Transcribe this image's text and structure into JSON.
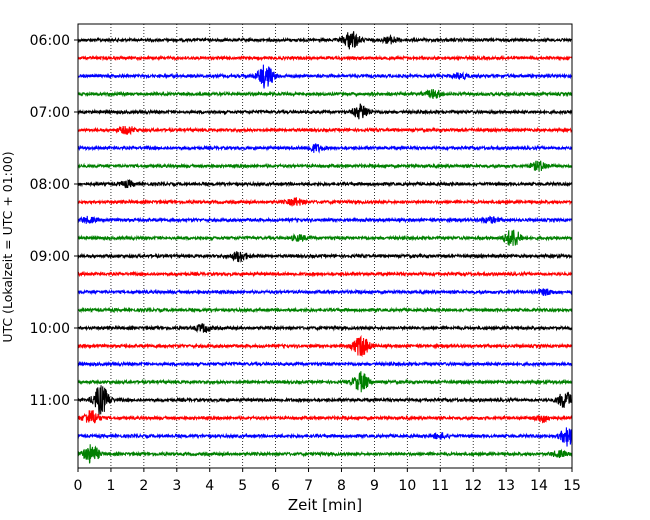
{
  "chart_data": {
    "type": "line",
    "title": "",
    "xlabel": "Zeit  [min]",
    "ylabel": "UTC (Lokalzeit = UTC + 01:00)",
    "xlim": [
      0,
      15
    ],
    "x_ticks": [
      0,
      1,
      2,
      3,
      4,
      5,
      6,
      7,
      8,
      9,
      10,
      11,
      12,
      13,
      14,
      15
    ],
    "y_tick_labels": [
      "06:00",
      "07:00",
      "08:00",
      "09:00",
      "10:00",
      "11:00"
    ],
    "trace_interval_min": 15,
    "trace_colors": [
      "#000000",
      "#ff0000",
      "#0000ff",
      "#008000"
    ],
    "vertical_grid": "dotted",
    "series": [
      {
        "start": "06:00",
        "color": "#000000",
        "events": [
          {
            "t": 8.3,
            "amp": 1.0
          },
          {
            "t": 9.5,
            "amp": 0.35
          }
        ]
      },
      {
        "start": "06:15",
        "color": "#ff0000",
        "events": []
      },
      {
        "start": "06:30",
        "color": "#0000ff",
        "events": [
          {
            "t": 5.7,
            "amp": 1.3
          },
          {
            "t": 11.6,
            "amp": 0.3
          }
        ]
      },
      {
        "start": "06:45",
        "color": "#008000",
        "events": [
          {
            "t": 10.8,
            "amp": 0.45
          }
        ]
      },
      {
        "start": "07:00",
        "color": "#000000",
        "events": [
          {
            "t": 8.6,
            "amp": 0.8
          }
        ]
      },
      {
        "start": "07:15",
        "color": "#ff0000",
        "events": [
          {
            "t": 1.5,
            "amp": 0.4
          }
        ]
      },
      {
        "start": "07:30",
        "color": "#0000ff",
        "events": [
          {
            "t": 7.2,
            "amp": 0.4
          }
        ]
      },
      {
        "start": "07:45",
        "color": "#008000",
        "events": [
          {
            "t": 14.0,
            "amp": 0.5
          }
        ]
      },
      {
        "start": "08:00",
        "color": "#000000",
        "events": [
          {
            "t": 1.5,
            "amp": 0.3
          }
        ]
      },
      {
        "start": "08:15",
        "color": "#ff0000",
        "events": [
          {
            "t": 6.6,
            "amp": 0.4
          }
        ]
      },
      {
        "start": "08:30",
        "color": "#0000ff",
        "events": [
          {
            "t": 0.3,
            "amp": 0.3
          },
          {
            "t": 12.5,
            "amp": 0.3
          }
        ]
      },
      {
        "start": "08:45",
        "color": "#008000",
        "events": [
          {
            "t": 13.2,
            "amp": 1.0
          },
          {
            "t": 6.7,
            "amp": 0.3
          }
        ]
      },
      {
        "start": "09:00",
        "color": "#000000",
        "events": [
          {
            "t": 4.9,
            "amp": 0.55
          }
        ]
      },
      {
        "start": "09:15",
        "color": "#ff0000",
        "events": []
      },
      {
        "start": "09:30",
        "color": "#0000ff",
        "events": [
          {
            "t": 14.2,
            "amp": 0.3
          }
        ]
      },
      {
        "start": "09:45",
        "color": "#008000",
        "events": []
      },
      {
        "start": "10:00",
        "color": "#000000",
        "events": [
          {
            "t": 3.8,
            "amp": 0.4
          }
        ]
      },
      {
        "start": "10:15",
        "color": "#ff0000",
        "events": [
          {
            "t": 8.6,
            "amp": 1.15
          }
        ]
      },
      {
        "start": "10:30",
        "color": "#0000ff",
        "events": []
      },
      {
        "start": "10:45",
        "color": "#008000",
        "events": [
          {
            "t": 8.6,
            "amp": 1.05
          }
        ]
      },
      {
        "start": "11:00",
        "color": "#000000",
        "events": [
          {
            "t": 0.7,
            "amp": 1.6
          },
          {
            "t": 14.8,
            "amp": 0.9
          }
        ]
      },
      {
        "start": "11:15",
        "color": "#ff0000",
        "events": [
          {
            "t": 0.4,
            "amp": 0.8
          },
          {
            "t": 14.1,
            "amp": 0.4
          }
        ]
      },
      {
        "start": "11:30",
        "color": "#0000ff",
        "events": [
          {
            "t": 14.9,
            "amp": 1.1
          },
          {
            "t": 11.0,
            "amp": 0.3
          }
        ]
      },
      {
        "start": "11:45",
        "color": "#008000",
        "events": [
          {
            "t": 0.4,
            "amp": 1.0
          },
          {
            "t": 14.6,
            "amp": 0.3
          }
        ]
      }
    ]
  }
}
